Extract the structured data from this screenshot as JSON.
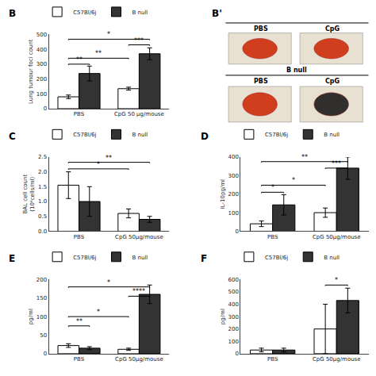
{
  "chart_data": [
    {
      "type": "bar",
      "title": "B",
      "ylabel": "Lung tumour foci count",
      "categories": [
        "PBS",
        "CpG 50 μg/mouse"
      ],
      "series": [
        {
          "name": "C57Bl/6j",
          "color": "white",
          "values": [
            80,
            135
          ],
          "errors": [
            12,
            10
          ]
        },
        {
          "name": "B null",
          "color": "#333333",
          "values": [
            237,
            370
          ],
          "errors": [
            50,
            40
          ]
        }
      ],
      "ylim": [
        0,
        500
      ],
      "yticks": [
        0,
        100,
        200,
        300,
        400,
        500
      ],
      "grid": false,
      "legend": "upper left",
      "annotations": [
        {
          "text": "**",
          "y": 300,
          "bars": [
            0,
            1
          ]
        },
        {
          "text": "**",
          "y": 340,
          "bars": [
            0,
            2
          ]
        },
        {
          "text": "***",
          "y": 430,
          "bars": [
            2,
            3
          ]
        },
        {
          "text": "*",
          "y": 468,
          "bars": [
            0,
            3
          ]
        }
      ]
    },
    {
      "type": "photos",
      "title": "B'",
      "annotations": [
        "PBS",
        "CpG",
        "B null",
        "PBS",
        "CpG"
      ],
      "color": "#e8e0d0",
      "colors": [
        "#cc2200",
        "#cc2200",
        "#cc2200",
        "#111111"
      ]
    },
    {
      "type": "bar",
      "title": "C",
      "ylabel": "BAL cell count\n(10⁶cells/ml)",
      "categories": [
        "PBS",
        "CpG 50μg/mouse"
      ],
      "series": [
        {
          "name": "C57Bl/6j",
          "color": "white",
          "values": [
            1.55,
            0.6
          ],
          "errors": [
            0.45,
            0.15
          ]
        },
        {
          "name": "B null",
          "color": "#333333",
          "values": [
            1.0,
            0.4
          ],
          "errors": [
            0.5,
            0.1
          ]
        }
      ],
      "ylim": [
        0,
        2.5
      ],
      "yticks": [
        {
          "value": 0,
          "label": "0.0"
        },
        0.5,
        {
          "value": 1,
          "label": "1.0"
        },
        1.5,
        {
          "value": 2,
          "label": "2.0"
        },
        2.5
      ],
      "grid": false,
      "legend": "upper left",
      "annotations": [
        {
          "text": "*",
          "y": 2.1,
          "bars": [
            0,
            2
          ]
        },
        {
          "text": "**",
          "y": 2.32,
          "bars": [
            0,
            3
          ]
        }
      ]
    },
    {
      "type": "bar",
      "title": "D",
      "ylabel": "IL-10pg/ml",
      "categories": [
        "PBS",
        "CpG 50μg/mouse"
      ],
      "series": [
        {
          "name": "C57Bl/6j",
          "color": "white",
          "values": [
            40,
            100
          ],
          "errors": [
            15,
            25
          ]
        },
        {
          "name": "B null",
          "color": "#333333",
          "values": [
            142,
            340
          ],
          "errors": [
            55,
            60
          ]
        }
      ],
      "ylim": [
        0,
        400
      ],
      "yticks": [
        0,
        100,
        200,
        300,
        400
      ],
      "grid": false,
      "legend": "upper left",
      "annotations": [
        {
          "text": "*",
          "y": 210,
          "bars": [
            0,
            1
          ]
        },
        {
          "text": "*",
          "y": 248,
          "bars": [
            0,
            2
          ]
        },
        {
          "text": "***",
          "y": 340,
          "bars": [
            2,
            3
          ]
        },
        {
          "text": "**",
          "y": 375,
          "bars": [
            0,
            3
          ]
        }
      ]
    },
    {
      "type": "bar",
      "title": "E",
      "ylabel": "pg/ml",
      "categories": [
        "PBS",
        "CpG 50μg/mouse"
      ],
      "series": [
        {
          "name": "C57Bl/6j",
          "color": "white",
          "values": [
            22,
            12
          ],
          "errors": [
            5,
            3
          ]
        },
        {
          "name": "B null",
          "color": "#333333",
          "values": [
            15,
            160
          ],
          "errors": [
            4,
            25
          ]
        }
      ],
      "ylim": [
        0,
        200
      ],
      "yticks": [
        0,
        50,
        100,
        150,
        200
      ],
      "grid": false,
      "legend": "upper left",
      "annotations": [
        {
          "text": "**",
          "y": 75,
          "bars": [
            0,
            1
          ]
        },
        {
          "text": "*",
          "y": 100,
          "bars": [
            0,
            2
          ]
        },
        {
          "text": "****",
          "y": 155,
          "bars": [
            2,
            3
          ]
        },
        {
          "text": "*",
          "y": 180,
          "bars": [
            0,
            3
          ]
        }
      ]
    },
    {
      "type": "bar",
      "title": "F",
      "ylabel": "pg/ml",
      "categories": [
        "PBS",
        "CpG 50μg/mouse"
      ],
      "series": [
        {
          "name": "C57Bl/6j",
          "color": "white",
          "values": [
            30,
            200
          ],
          "errors": [
            15,
            200
          ]
        },
        {
          "name": "B null",
          "color": "#333333",
          "values": [
            30,
            430
          ],
          "errors": [
            15,
            100
          ]
        }
      ],
      "ylim": [
        0,
        600
      ],
      "yticks": [
        0,
        100,
        200,
        300,
        400,
        500,
        600
      ],
      "grid": false,
      "legend": "upper left",
      "annotations": [
        {
          "text": "*",
          "y": 555,
          "bars": [
            2,
            3
          ]
        }
      ]
    }
  ]
}
